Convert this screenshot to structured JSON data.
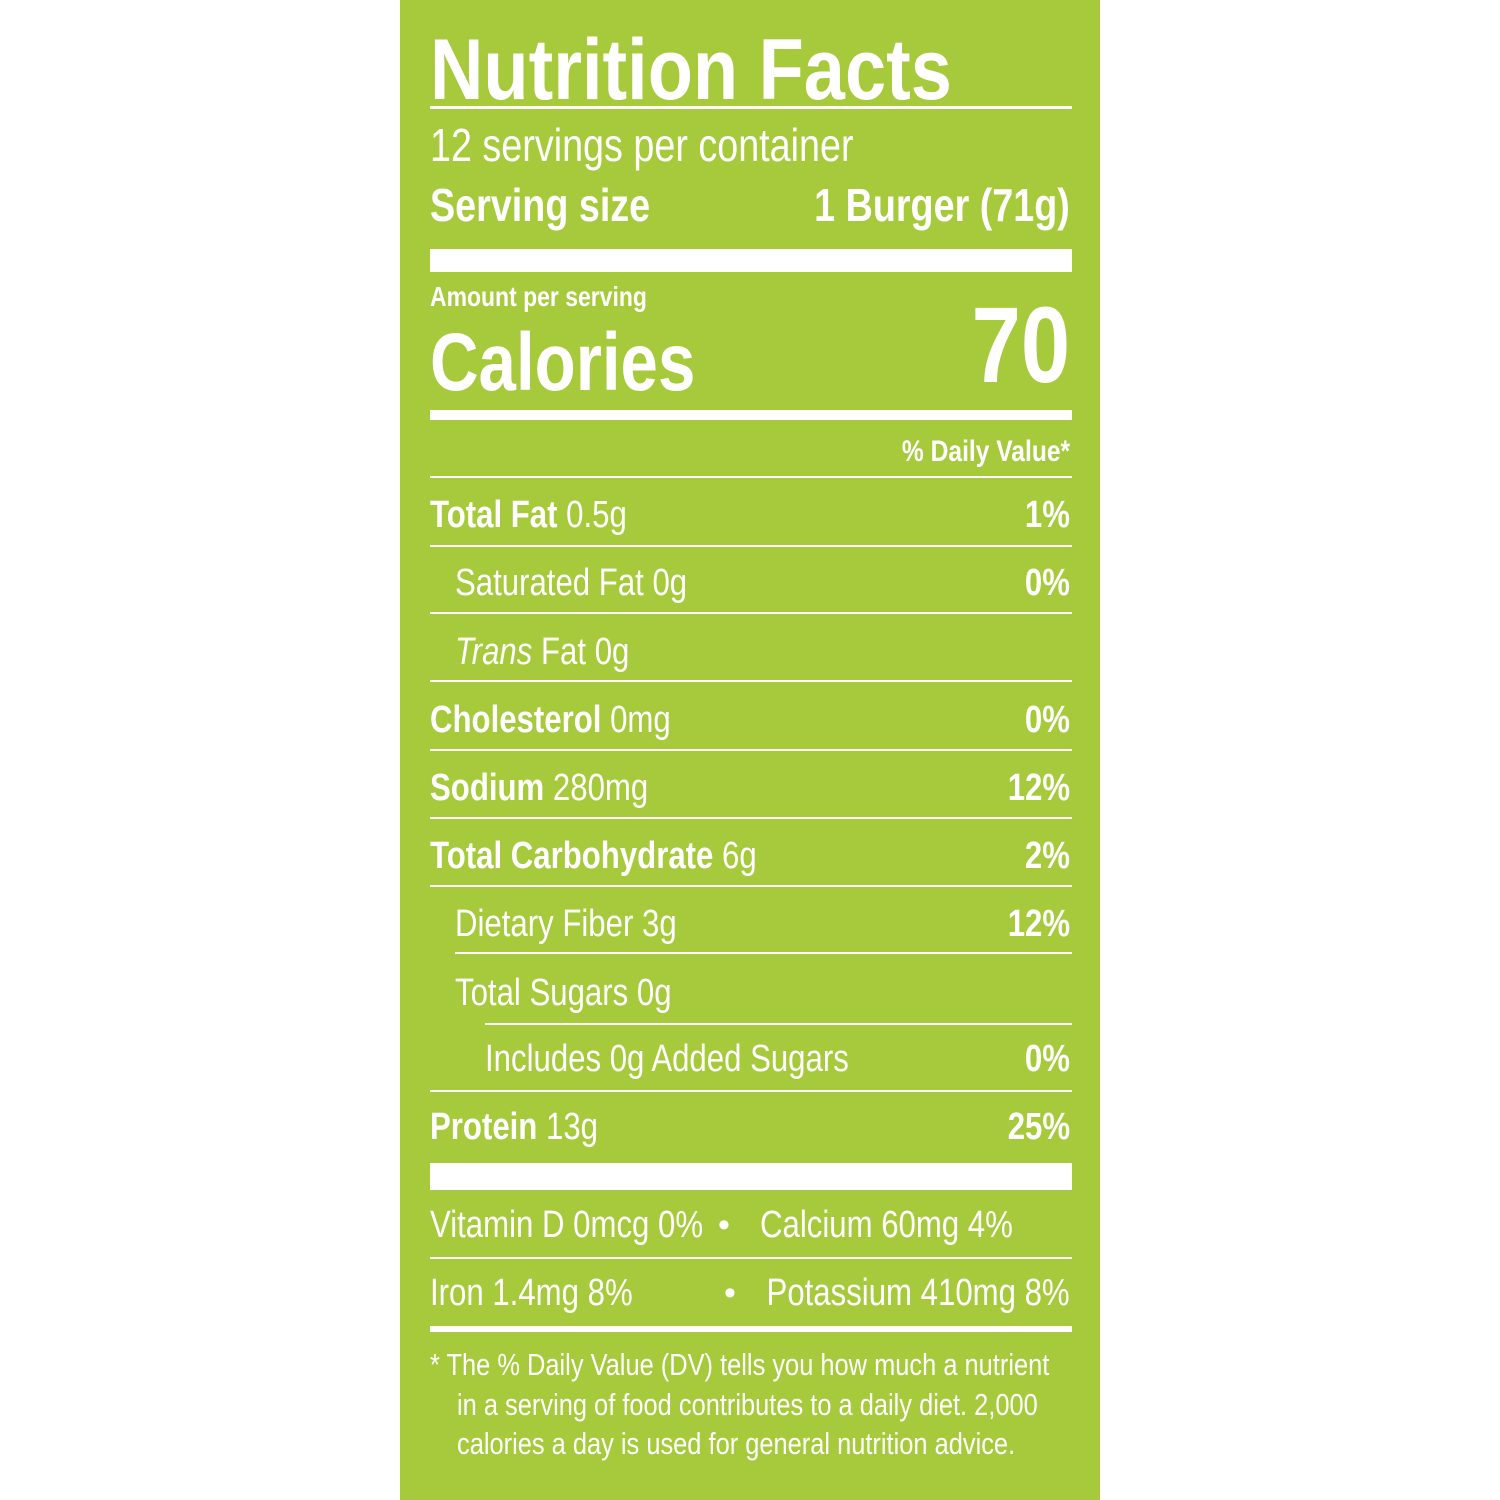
{
  "title": "Nutrition Facts",
  "servings": "12 servings per container",
  "serving_size": {
    "label": "Serving size",
    "value": "1 Burger (71g)"
  },
  "calories": {
    "amount_per_serving": "Amount per serving",
    "label": "Calories",
    "value": "70"
  },
  "dv_header": "% Daily Value*",
  "rows": [
    {
      "name": "Total Fat",
      "amount": "0.5g",
      "dv": "1%"
    },
    {
      "name": "Saturated Fat",
      "amount": "0g",
      "dv": "0%"
    },
    {
      "italic": "Trans",
      "name": "Fat",
      "amount": "0g"
    },
    {
      "name": "Cholesterol",
      "amount": "0mg",
      "dv": "0%"
    },
    {
      "name": "Sodium",
      "amount": "280mg",
      "dv": "12%"
    },
    {
      "name": "Total Carbohydrate",
      "amount": "6g",
      "dv": "2%"
    },
    {
      "name": "Dietary Fiber",
      "amount": "3g",
      "dv": "12%"
    },
    {
      "name": "Total Sugars",
      "amount": "0g"
    },
    {
      "name": "Includes 0g Added Sugars",
      "dv": "0%"
    },
    {
      "name": "Protein",
      "amount": "13g",
      "dv": "25%"
    }
  ],
  "separator": "•",
  "vitamins": [
    [
      "Vitamin D 0mcg 0%",
      "Calcium 60mg 4%"
    ],
    [
      "Iron 1.4mg 8%",
      "Potassium 410mg 8%"
    ]
  ],
  "footnote": [
    "* The % Daily Value (DV) tells you how much a nutrient",
    "in a serving of food contributes to a daily diet. 2,000",
    "calories a day is used for general nutrition advice."
  ]
}
